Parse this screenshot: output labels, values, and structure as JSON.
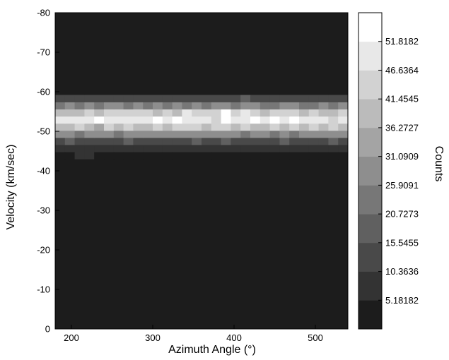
{
  "chart_data": {
    "type": "heatmap",
    "title": "",
    "xlabel": "Azimuth Angle (°)",
    "ylabel": "Velocity (km/sec)",
    "colorbar_label": "Counts",
    "xlim": [
      180,
      540
    ],
    "ylim": [
      0,
      -80
    ],
    "x_ticks": [
      "200",
      "300",
      "400",
      "500"
    ],
    "x_tick_values": [
      200,
      300,
      400,
      500
    ],
    "y_ticks": [
      "0",
      "-10",
      "-20",
      "-30",
      "-40",
      "-50",
      "-60",
      "-70",
      "-80"
    ],
    "y_tick_values": [
      0,
      -10,
      -20,
      -30,
      -40,
      -50,
      -60,
      -70,
      -80
    ],
    "colorbar_ticks": [
      "5.18182",
      "10.3636",
      "15.5455",
      "20.7273",
      "25.9091",
      "31.0909",
      "36.2727",
      "41.4545",
      "46.6364",
      "51.8182"
    ],
    "colorbar_tick_values": [
      5.18182,
      10.3636,
      15.5455,
      20.7273,
      25.9091,
      31.0909,
      36.2727,
      41.4545,
      46.6364,
      51.8182
    ],
    "color_range": [
      0,
      57
    ],
    "colormap": {
      "low": "#1c1c1c",
      "high": "#ffffff"
    },
    "grid": false,
    "x_bins": {
      "start": 180,
      "step": 12,
      "count": 30
    },
    "y_bins": {
      "start": -43,
      "step": -1.8,
      "count": 9
    },
    "z_background": 2,
    "z": [
      [
        4,
        5,
        6,
        6,
        5,
        4,
        3,
        4,
        5,
        4,
        4,
        3,
        4,
        3,
        3,
        4,
        3,
        3,
        4,
        4,
        3,
        4,
        4,
        4,
        3,
        5,
        3,
        4,
        3,
        4
      ],
      [
        8,
        9,
        8,
        8,
        9,
        9,
        8,
        7,
        8,
        9,
        6,
        8,
        7,
        7,
        7,
        9,
        8,
        8,
        6,
        7,
        7,
        7,
        9,
        9,
        8,
        7,
        8,
        8,
        7,
        9
      ],
      [
        14,
        16,
        15,
        14,
        13,
        14,
        15,
        16,
        15,
        14,
        14,
        12,
        15,
        14,
        16,
        13,
        15,
        16,
        15,
        14,
        13,
        15,
        14,
        16,
        15,
        14,
        15,
        13,
        16,
        14
      ],
      [
        26,
        28,
        25,
        29,
        27,
        28,
        25,
        27,
        26,
        29,
        28,
        27,
        26,
        28,
        27,
        29,
        26,
        28,
        27,
        25,
        30,
        26,
        24,
        26,
        25,
        27,
        28,
        30,
        28,
        28
      ],
      [
        40,
        38,
        44,
        38,
        35,
        42,
        39,
        45,
        41,
        38,
        43,
        40,
        44,
        46,
        42,
        38,
        44,
        42,
        39,
        45,
        41,
        37,
        43,
        39,
        44,
        40,
        42,
        38,
        43,
        41
      ],
      [
        47,
        49,
        50,
        48,
        52,
        47,
        49,
        48,
        51,
        49,
        52,
        47,
        53,
        49,
        48,
        51,
        46,
        52,
        48,
        50,
        52,
        49,
        53,
        47,
        52,
        50,
        51,
        48,
        46,
        48
      ],
      [
        37,
        41,
        39,
        43,
        40,
        45,
        44,
        43,
        42,
        46,
        40,
        45,
        41,
        47,
        43,
        45,
        46,
        54,
        44,
        47,
        43,
        41,
        46,
        42,
        44,
        40,
        45,
        41,
        39,
        42
      ],
      [
        23,
        26,
        25,
        27,
        24,
        26,
        28,
        24,
        27,
        25,
        26,
        24,
        27,
        25,
        28,
        24,
        26,
        28,
        23,
        26,
        28,
        25,
        24,
        27,
        26,
        24,
        25,
        27,
        25,
        26
      ],
      [
        13,
        14,
        13,
        15,
        12,
        14,
        13,
        13,
        15,
        14,
        13,
        14,
        15,
        13,
        15,
        14,
        13,
        15,
        14,
        16,
        14,
        13,
        15,
        14,
        12,
        13,
        14,
        15,
        13,
        12
      ]
    ]
  }
}
